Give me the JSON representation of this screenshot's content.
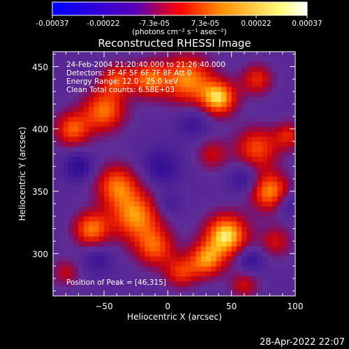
{
  "colorbar": {
    "tick_labels": [
      "-0.00037",
      "-0.00022",
      "-7.3e-05",
      "7.3e-05",
      "0.00022",
      "0.00037"
    ],
    "unit_label": "(photons cm⁻² s⁻¹ asec⁻²)",
    "colors": [
      "#0000ff",
      "#5a00b4",
      "#ff0000",
      "#ff8c00",
      "#ffff80",
      "#ffffff"
    ]
  },
  "chart_data": {
    "type": "heatmap",
    "title": "Reconstructed RHESSI Image",
    "xlabel": "Heliocentric X (arcsec)",
    "ylabel": "Heliocentric Y (arcsec)",
    "xlim": [
      -90,
      100
    ],
    "ylim": [
      266,
      462
    ],
    "x_ticks": [
      -50,
      0,
      50,
      100
    ],
    "y_ticks": [
      300,
      350,
      400,
      450
    ],
    "x_tick_labels": [
      "−50",
      "0",
      "50",
      "100"
    ],
    "y_tick_labels": [
      "300",
      "350",
      "400",
      "450"
    ],
    "color_range": [
      -0.00037,
      0.00037
    ],
    "annotations": [
      "24-Feb-2004 21:20:40.000 to 21:26:40.000",
      "Detectors: 3F 4F 5F 6F 7F 8F  Att 0",
      "Energy Range: 12.0 - 25.0 keV",
      "Clean    Total counts: 6.58E+03"
    ],
    "peak_label": "Position of Peak = [46,315]",
    "peak": [
      46,
      315
    ],
    "blobs": [
      {
        "x": 15,
        "y": 440,
        "s": 14,
        "a": 0.0003
      },
      {
        "x": 40,
        "y": 425,
        "s": 10,
        "a": 0.00034
      },
      {
        "x": -15,
        "y": 440,
        "s": 10,
        "a": 0.00026
      },
      {
        "x": -50,
        "y": 415,
        "s": 12,
        "a": 0.00028
      },
      {
        "x": -75,
        "y": 400,
        "s": 10,
        "a": 0.00025
      },
      {
        "x": -40,
        "y": 440,
        "s": 9,
        "a": 0.00022
      },
      {
        "x": 70,
        "y": 440,
        "s": 9,
        "a": 0.0002
      },
      {
        "x": 70,
        "y": 385,
        "s": 12,
        "a": 0.00024
      },
      {
        "x": 95,
        "y": 395,
        "s": 8,
        "a": 0.00018
      },
      {
        "x": 80,
        "y": 350,
        "s": 11,
        "a": 0.0003
      },
      {
        "x": 35,
        "y": 380,
        "s": 9,
        "a": 0.00015
      },
      {
        "x": -40,
        "y": 355,
        "s": 12,
        "a": 0.00026
      },
      {
        "x": -25,
        "y": 330,
        "s": 14,
        "a": 0.0003
      },
      {
        "x": -60,
        "y": 320,
        "s": 10,
        "a": 0.00028
      },
      {
        "x": -10,
        "y": 305,
        "s": 11,
        "a": 0.00024
      },
      {
        "x": 46,
        "y": 315,
        "s": 12,
        "a": 0.00037
      },
      {
        "x": 30,
        "y": 295,
        "s": 10,
        "a": 0.00028
      },
      {
        "x": 10,
        "y": 285,
        "s": 9,
        "a": 0.0002
      },
      {
        "x": 85,
        "y": 310,
        "s": 9,
        "a": 0.00016
      },
      {
        "x": -80,
        "y": 285,
        "s": 8,
        "a": 0.00014
      },
      {
        "x": 60,
        "y": 275,
        "s": 8,
        "a": 0.00016
      },
      {
        "x": -70,
        "y": 370,
        "s": 8,
        "a": -0.00018
      },
      {
        "x": -5,
        "y": 370,
        "s": 10,
        "a": -0.00016
      },
      {
        "x": 60,
        "y": 360,
        "s": 8,
        "a": -0.00014
      },
      {
        "x": 20,
        "y": 405,
        "s": 9,
        "a": -0.00012
      },
      {
        "x": 0,
        "y": 340,
        "s": 7,
        "a": -0.0001
      },
      {
        "x": -55,
        "y": 295,
        "s": 8,
        "a": -0.00012
      },
      {
        "x": 65,
        "y": 295,
        "s": 7,
        "a": -0.00015
      },
      {
        "x": 95,
        "y": 340,
        "s": 7,
        "a": -0.00012
      }
    ]
  },
  "footer": {
    "timestamp": "28-Apr-2022 22:07"
  }
}
